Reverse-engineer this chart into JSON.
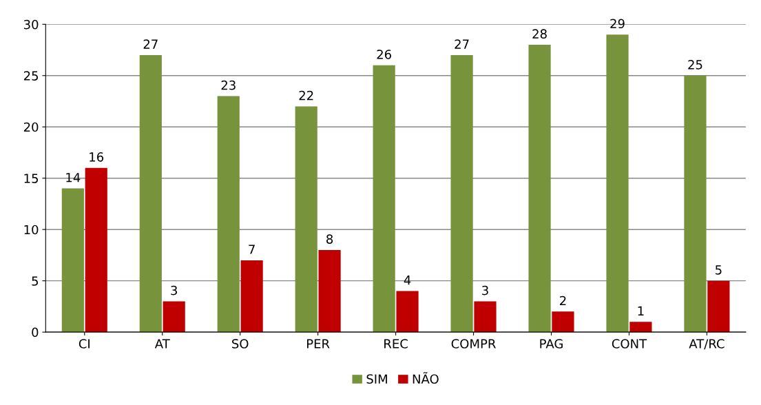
{
  "chart_data": {
    "type": "bar",
    "categories": [
      "CI",
      "AT",
      "SO",
      "PER",
      "REC",
      "COMPR",
      "PAG",
      "CONT",
      "AT/RC"
    ],
    "series": [
      {
        "name": "SIM",
        "color": "#77933c",
        "values": [
          14,
          27,
          23,
          22,
          26,
          27,
          28,
          29,
          25
        ]
      },
      {
        "name": "NÃO",
        "color": "#c00000",
        "values": [
          16,
          3,
          7,
          8,
          4,
          3,
          2,
          1,
          5
        ]
      }
    ],
    "ylim": [
      0,
      30
    ],
    "yticks": [
      0,
      5,
      10,
      15,
      20,
      25,
      30
    ],
    "grid": "y",
    "legend": "bottom",
    "data_labels": true
  }
}
